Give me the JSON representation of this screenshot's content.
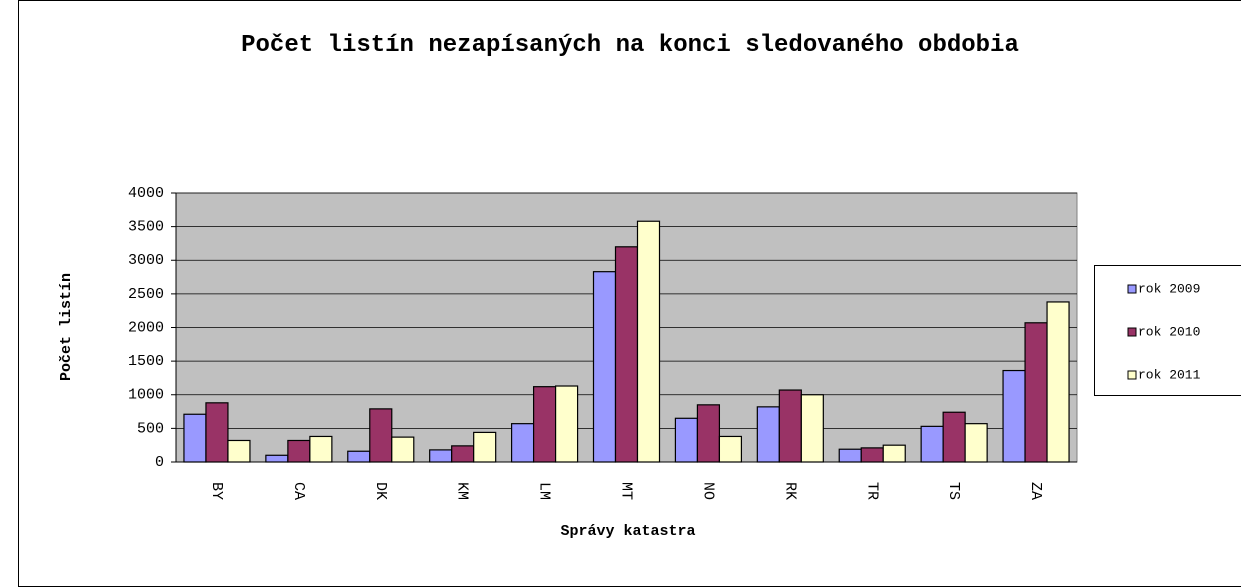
{
  "chart_data": {
    "type": "bar",
    "title": "Počet listín nezapísaných na konci sledovaného obdobia",
    "x_label": "Správy katastra",
    "y_label": "Počet listín",
    "categories": [
      "BY",
      "CA",
      "DK",
      "KM",
      "LM",
      "MT",
      "NO",
      "RK",
      "TR",
      "TS",
      "ZA"
    ],
    "series": [
      {
        "name": "rok 2009",
        "color": "#9999ff",
        "values": [
          710,
          100,
          160,
          180,
          570,
          2830,
          650,
          820,
          190,
          530,
          1360
        ]
      },
      {
        "name": "rok 2010",
        "color": "#993366",
        "values": [
          880,
          320,
          790,
          240,
          1120,
          3200,
          850,
          1070,
          210,
          740,
          2070
        ]
      },
      {
        "name": "rok 2011",
        "color": "#ffffcc",
        "values": [
          320,
          380,
          370,
          440,
          1130,
          3580,
          380,
          1000,
          250,
          570,
          2380
        ]
      }
    ],
    "ylim": [
      0,
      4000
    ],
    "yticks": [
      0,
      500,
      1000,
      1500,
      2000,
      2500,
      3000,
      3500,
      4000
    ],
    "grid": true,
    "legend": "right"
  }
}
